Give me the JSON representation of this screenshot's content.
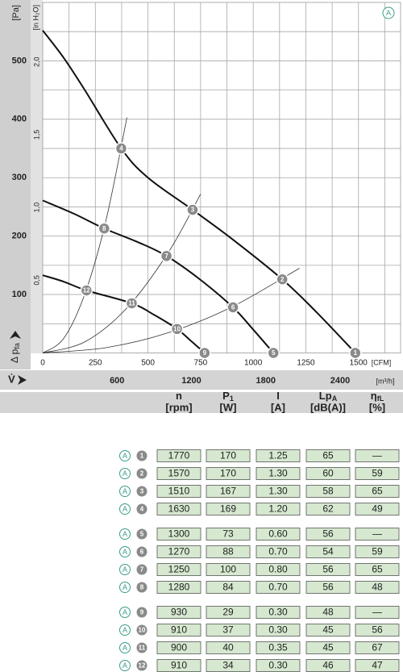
{
  "chart_data": {
    "type": "line",
    "badge": "A",
    "y_label": "[Pa]",
    "y2_label": "[in H₂O]",
    "x_label": "[CFM]",
    "x2_label": "[m³/h]",
    "y_axis_title": {
      "main": "Δ p",
      "sub": "fa"
    },
    "x2_axis_title": "V̇",
    "xlim": [
      0,
      1700
    ],
    "xticks": [
      0,
      250,
      500,
      750,
      1000,
      1250,
      1500
    ],
    "xgrid": [
      125,
      250,
      375,
      500,
      625,
      750,
      875,
      1000,
      1125,
      1250,
      1375,
      1500,
      1625
    ],
    "ylim": [
      0,
      600
    ],
    "yticks": [
      100,
      200,
      300,
      400,
      500
    ],
    "ygrid": [
      50,
      100,
      150,
      200,
      250,
      300,
      350,
      400,
      450,
      500,
      550
    ],
    "y2lim": [
      0,
      2.409
    ],
    "y2ticks": [
      {
        "value": 0.5,
        "label": "0,5"
      },
      {
        "value": 1.0,
        "label": "1,0"
      },
      {
        "value": 1.5,
        "label": "1,5"
      },
      {
        "value": 2.0,
        "label": "2,0"
      }
    ],
    "x2lim": [
      0,
      2888
    ],
    "x2ticks": [
      600,
      1200,
      1800,
      2400
    ],
    "series": [
      {
        "color": "#111111",
        "x": [
          0,
          100,
          200,
          373,
          500,
          712,
          900,
          1138,
          1300,
          1485
        ],
        "values": [
          552,
          505,
          450,
          350,
          300,
          245,
          195,
          126,
          70,
          0
        ]
      },
      {
        "color": "#111111",
        "x": [
          0,
          150,
          292,
          450,
          588,
          750,
          904,
          1000,
          1096
        ],
        "values": [
          261,
          238,
          213,
          190,
          166,
          125,
          78,
          40,
          0
        ]
      },
      {
        "color": "#111111",
        "x": [
          0,
          100,
          208,
          423,
          530,
          638,
          700,
          769
        ],
        "values": [
          133,
          122,
          107,
          85,
          65,
          41,
          22,
          0
        ]
      }
    ],
    "system_curves": [
      {
        "color": "#333333",
        "x": [
          0,
          100,
          200,
          300,
          400
        ],
        "values": [
          0,
          25,
          101,
          226,
          403
        ]
      },
      {
        "color": "#333333",
        "x": [
          0,
          200,
          400,
          600,
          750
        ],
        "values": [
          0,
          19,
          77,
          174,
          272
        ]
      },
      {
        "color": "#333333",
        "x": [
          0,
          300,
          600,
          900,
          1220
        ],
        "values": [
          0,
          9,
          35,
          79,
          145
        ]
      }
    ],
    "points": [
      {
        "label": "1",
        "x": 1485,
        "y": 0
      },
      {
        "label": "2",
        "x": 1138,
        "y": 126
      },
      {
        "label": "3",
        "x": 712,
        "y": 245
      },
      {
        "label": "4",
        "x": 373,
        "y": 350
      },
      {
        "label": "5",
        "x": 1096,
        "y": 0
      },
      {
        "label": "6",
        "x": 904,
        "y": 78
      },
      {
        "label": "7",
        "x": 588,
        "y": 166
      },
      {
        "label": "8",
        "x": 292,
        "y": 213
      },
      {
        "label": "9",
        "x": 769,
        "y": 0
      },
      {
        "label": "10",
        "x": 638,
        "y": 41
      },
      {
        "label": "11",
        "x": 423,
        "y": 85
      },
      {
        "label": "12",
        "x": 208,
        "y": 107
      }
    ]
  },
  "table": {
    "header": [
      {
        "main": "n",
        "unit": "[rpm]"
      },
      {
        "main": "P",
        "sub": "1",
        "unit": "[W]"
      },
      {
        "main": "I",
        "unit": "[A]"
      },
      {
        "main": "Lp",
        "sub": "A",
        "unit": "[dB(A)]"
      },
      {
        "main": "η",
        "sub": "fL",
        "unit": "[%]"
      }
    ],
    "rows": [
      {
        "curve": "A",
        "point": "1",
        "cells": [
          "1770",
          "170",
          "1.25",
          "65",
          "—"
        ]
      },
      {
        "curve": "A",
        "point": "2",
        "cells": [
          "1570",
          "170",
          "1.30",
          "60",
          "59"
        ]
      },
      {
        "curve": "A",
        "point": "3",
        "cells": [
          "1510",
          "167",
          "1.30",
          "58",
          "65"
        ]
      },
      {
        "curve": "A",
        "point": "4",
        "cells": [
          "1630",
          "169",
          "1.20",
          "62",
          "49"
        ]
      },
      {
        "curve": "A",
        "point": "5",
        "cells": [
          "1300",
          "73",
          "0.60",
          "56",
          "—"
        ]
      },
      {
        "curve": "A",
        "point": "6",
        "cells": [
          "1270",
          "88",
          "0.70",
          "54",
          "59"
        ]
      },
      {
        "curve": "A",
        "point": "7",
        "cells": [
          "1250",
          "100",
          "0.80",
          "56",
          "65"
        ]
      },
      {
        "curve": "A",
        "point": "8",
        "cells": [
          "1280",
          "84",
          "0.70",
          "56",
          "48"
        ]
      },
      {
        "curve": "A",
        "point": "9",
        "cells": [
          "930",
          "29",
          "0.30",
          "48",
          "—"
        ]
      },
      {
        "curve": "A",
        "point": "10",
        "cells": [
          "910",
          "37",
          "0.30",
          "45",
          "56"
        ]
      },
      {
        "curve": "A",
        "point": "11",
        "cells": [
          "900",
          "40",
          "0.35",
          "45",
          "67"
        ]
      },
      {
        "curve": "A",
        "point": "12",
        "cells": [
          "910",
          "34",
          "0.30",
          "46",
          "47"
        ]
      }
    ]
  }
}
